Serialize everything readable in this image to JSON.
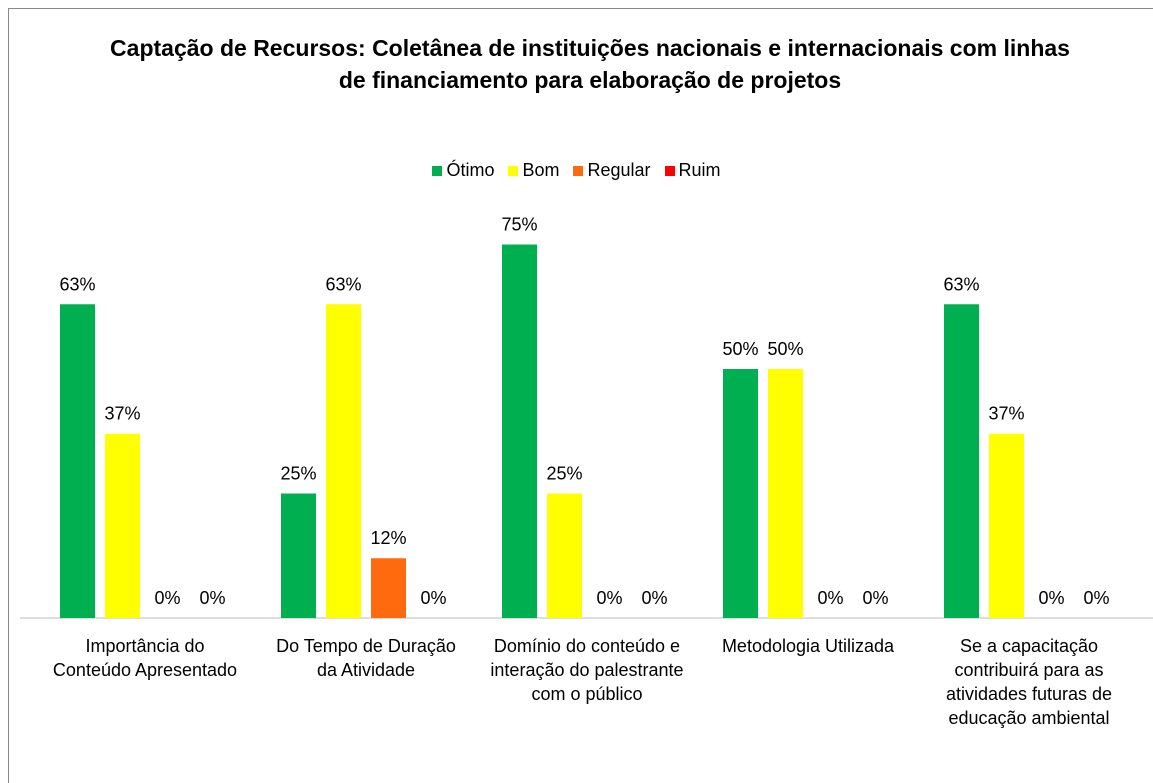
{
  "chart_data": {
    "type": "bar",
    "title": "Captação de Recursos: Coletânea de instituições nacionais e internacionais com linhas de financiamento para elaboração de projetos",
    "categories": [
      "Importância do Conteúdo Apresentado",
      "Do Tempo de Duração da Atividade",
      "Domínio do conteúdo e interação do palestrante com o público",
      "Metodologia Utilizada",
      "Se a capacitação contribuirá para as atividades futuras de educação ambiental"
    ],
    "series": [
      {
        "name": "Ótimo",
        "color": "#00b050",
        "values": [
          63,
          25,
          75,
          50,
          63
        ],
        "value_labels": [
          "63%",
          "25%",
          "75%",
          "50%",
          "63%"
        ]
      },
      {
        "name": "Bom",
        "color": "#ffff00",
        "values": [
          37,
          63,
          25,
          50,
          37
        ],
        "value_labels": [
          "37%",
          "63%",
          "25%",
          "50%",
          "37%"
        ]
      },
      {
        "name": "Regular",
        "color": "#ff6a0f",
        "values": [
          0,
          12,
          0,
          0,
          0
        ],
        "value_labels": [
          "0%",
          "12%",
          "0%",
          "0%",
          "0%"
        ]
      },
      {
        "name": "Ruim",
        "color": "#ff0000",
        "values": [
          0,
          0,
          0,
          0,
          0
        ],
        "value_labels": [
          "0%",
          "0%",
          "0%",
          "0%",
          "0%"
        ]
      }
    ],
    "legend": "top"
  }
}
